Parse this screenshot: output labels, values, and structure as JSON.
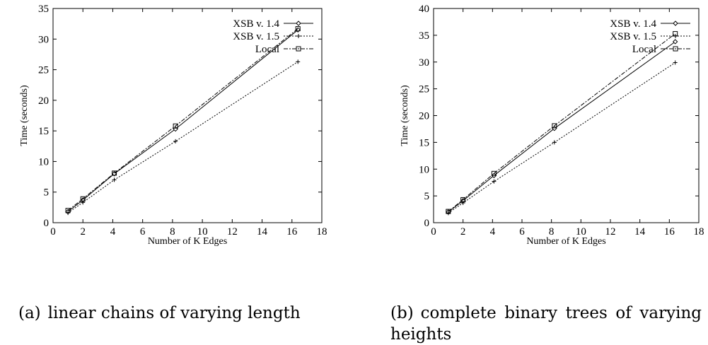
{
  "chart_data": [
    {
      "type": "line",
      "title": "",
      "xlabel": "Number of K Edges",
      "ylabel": "Time (seconds)",
      "xlim": [
        0,
        18
      ],
      "ylim": [
        0,
        35
      ],
      "xticks": [
        0,
        2,
        4,
        6,
        8,
        10,
        12,
        14,
        16,
        18
      ],
      "yticks": [
        0,
        5,
        10,
        15,
        20,
        25,
        30,
        35
      ],
      "grid": false,
      "legend_position": "top-right",
      "series": [
        {
          "name": "XSB v. 1.4",
          "marker": "diamond",
          "line": "solid",
          "x": [
            1,
            2,
            4.1,
            8.2,
            16.4
          ],
          "y": [
            1.8,
            3.7,
            8.0,
            15.3,
            31.5
          ]
        },
        {
          "name": "XSB v. 1.5",
          "marker": "plus",
          "line": "dotted",
          "x": [
            1,
            2,
            4.1,
            8.2,
            16.4
          ],
          "y": [
            1.6,
            3.3,
            7.0,
            13.3,
            26.3
          ]
        },
        {
          "name": "Local",
          "marker": "square",
          "line": "dashdot",
          "x": [
            1,
            2,
            4.1,
            8.2,
            16.4
          ],
          "y": [
            2.0,
            3.9,
            8.1,
            15.8,
            31.7
          ]
        }
      ]
    },
    {
      "type": "line",
      "title": "",
      "xlabel": "Number of K Edges",
      "ylabel": "Time (seconds)",
      "xlim": [
        0,
        18
      ],
      "ylim": [
        0,
        40
      ],
      "xticks": [
        0,
        2,
        4,
        6,
        8,
        10,
        12,
        14,
        16,
        18
      ],
      "yticks": [
        0,
        5,
        10,
        15,
        20,
        25,
        30,
        35,
        40
      ],
      "grid": false,
      "legend_position": "top-right",
      "series": [
        {
          "name": "XSB v. 1.4",
          "marker": "diamond",
          "line": "solid",
          "x": [
            1,
            2,
            4.1,
            8.2,
            16.4
          ],
          "y": [
            2.0,
            4.1,
            8.8,
            17.6,
            33.8
          ]
        },
        {
          "name": "XSB v. 1.5",
          "marker": "plus",
          "line": "dotted",
          "x": [
            1,
            2,
            4.1,
            8.2,
            16.4
          ],
          "y": [
            1.8,
            3.7,
            7.7,
            15.0,
            29.9
          ]
        },
        {
          "name": "Local",
          "marker": "square",
          "line": "dashdot",
          "x": [
            1,
            2,
            4.1,
            8.2,
            16.4
          ],
          "y": [
            2.1,
            4.3,
            9.2,
            18.1,
            35.3
          ]
        }
      ]
    }
  ],
  "captions": [
    {
      "prefix": "(a)",
      "text": "linear chains of varying length"
    },
    {
      "prefix": "(b)",
      "text": "complete binary trees of varying heights"
    }
  ]
}
